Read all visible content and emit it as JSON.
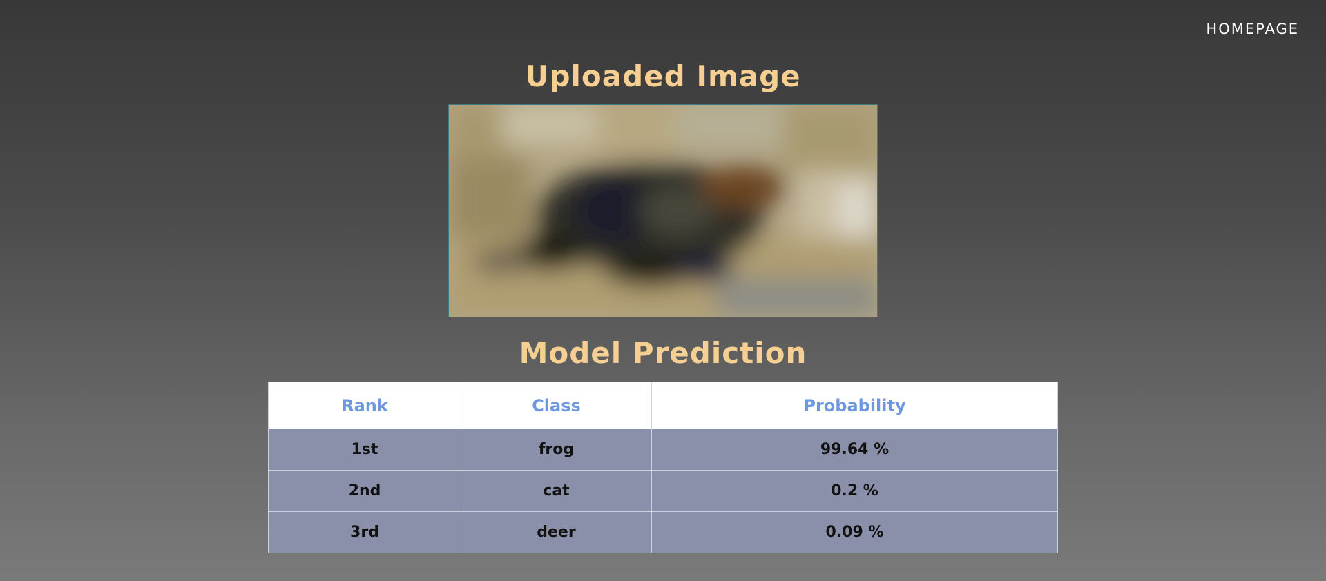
{
  "nav": {
    "homepage_label": "HOMEPAGE"
  },
  "sections": {
    "uploaded_title": "Uploaded Image",
    "prediction_title": "Model Prediction"
  },
  "table": {
    "headers": {
      "rank": "Rank",
      "class": "Class",
      "probability": "Probability"
    },
    "rows": [
      {
        "rank": "1st",
        "class": "frog",
        "probability": "99.64 %"
      },
      {
        "rank": "2nd",
        "class": "cat",
        "probability": "0.2 %"
      },
      {
        "rank": "3rd",
        "class": "deer",
        "probability": "0.09 %"
      }
    ]
  },
  "colors": {
    "heading": "#f6cf92",
    "table_header_text": "#6e97de",
    "table_row_bg": "#8b90aa"
  }
}
